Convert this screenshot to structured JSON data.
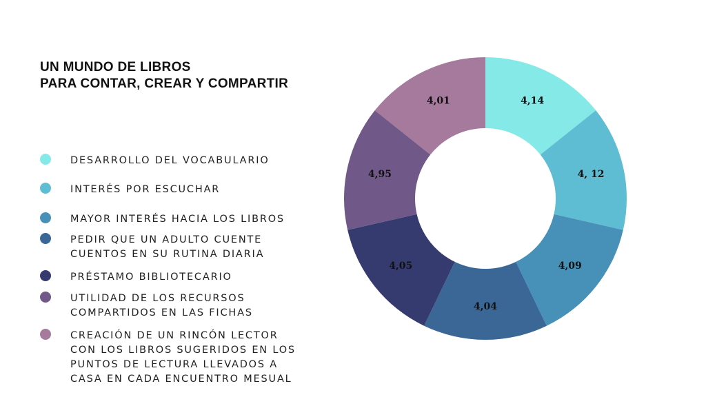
{
  "title": {
    "line1": "UN MUNDO DE LIBROS",
    "line2": "PARA CONTAR, CREAR Y COMPARTIR"
  },
  "legend": [
    {
      "label": "DESARROLLO DEL VOCABULARIO",
      "color": "#85e9e7"
    },
    {
      "label": "INTERÉS POR ESCUCHAR",
      "color": "#5fbdd3"
    },
    {
      "label": "MAYOR INTERÉS HACIA LOS LIBROS",
      "color": "#4791b8"
    },
    {
      "label": "PEDIR QUE UN ADULTO CUENTE\nCUENTOS EN SU RUTINA DIARIA",
      "color": "#3b6797"
    },
    {
      "label": "PRÉSTAMO BIBLIOTECARIO",
      "color": "#353b6e"
    },
    {
      "label": "UTILIDAD DE LOS RECURSOS\nCOMPARTIDOS EN LAS FICHAS",
      "color": "#705888"
    },
    {
      "label": "CREACIÓN DE UN RINCÓN LECTOR\nCON LOS LIBROS SUGERIDOS EN LOS\nPUNTOS DE LECTURA LLEVADOS A\nCASA EN CADA ENCUENTRO MESUAL",
      "color": "#a57a9d"
    }
  ],
  "chart_data": {
    "type": "pie",
    "variant": "donut",
    "categories": [
      "DESARROLLO DEL VOCABULARIO",
      "INTERÉS POR ESCUCHAR",
      "MAYOR INTERÉS HACIA LOS LIBROS",
      "PEDIR QUE UN ADULTO CUENTE CUENTOS EN SU RUTINA DIARIA",
      "PRÉSTAMO BIBLIOTECARIO",
      "UTILIDAD DE LOS RECURSOS COMPARTIDOS EN LAS FICHAS",
      "CREACIÓN DE UN RINCÓN LECTOR CON LOS LIBROS SUGERIDOS EN LOS PUNTOS DE LECTURA LLEVADOS A CASA EN CADA ENCUENTRO MESUAL"
    ],
    "values": [
      4.14,
      4.12,
      4.09,
      4.04,
      4.05,
      4.95,
      4.01
    ],
    "value_labels": [
      "4,14",
      "4, 12",
      "4,09",
      "4,04",
      "4,05",
      "4,95",
      "4,01"
    ],
    "colors": [
      "#85e9e7",
      "#5fbdd3",
      "#4791b8",
      "#3b6797",
      "#353b6e",
      "#705888",
      "#a57a9d"
    ],
    "slice_proportions": "equal",
    "start": "top",
    "direction": "clockwise",
    "legend_position": "left"
  }
}
